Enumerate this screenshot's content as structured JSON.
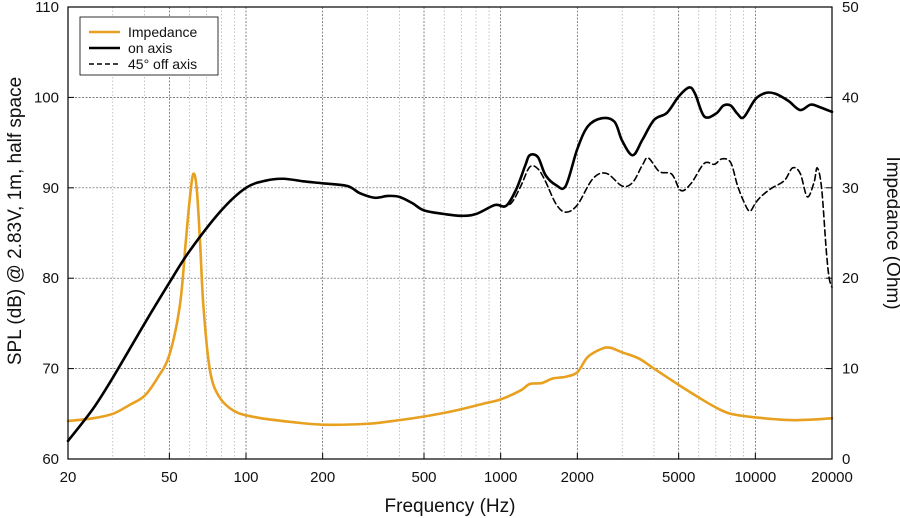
{
  "chart_data": {
    "type": "line",
    "xlabel": "Frequency (Hz)",
    "ylabel_left": "SPL (dB) @ 2.83V, 1m, half space",
    "ylabel_right": "Impedance (Ohm)",
    "x_scale": "log",
    "xlim": [
      20,
      20000
    ],
    "ylim_left": [
      60,
      110
    ],
    "ylim_right": [
      0,
      50
    ],
    "x_ticks": [
      20,
      50,
      100,
      200,
      500,
      1000,
      2000,
      5000,
      10000,
      20000
    ],
    "x_tick_labels": [
      "20",
      "50",
      "100",
      "200",
      "500",
      "1000",
      "2000",
      "5000",
      "10000",
      "20000"
    ],
    "y_ticks_left": [
      60,
      70,
      80,
      90,
      100,
      110
    ],
    "y_tick_labels_left": [
      "60",
      "70",
      "80",
      "90",
      "100",
      "110"
    ],
    "y_ticks_right": [
      0,
      10,
      20,
      30,
      40,
      50
    ],
    "y_tick_labels_right": [
      "0",
      "10",
      "20",
      "30",
      "40",
      "50"
    ],
    "grid": true,
    "legend_position": "top-left",
    "series": [
      {
        "name": "Impedance",
        "axis": "right",
        "color": "#E8A020",
        "style": "solid",
        "points": [
          [
            20,
            4.2
          ],
          [
            25,
            4.5
          ],
          [
            30,
            5.0
          ],
          [
            35,
            6.0
          ],
          [
            40,
            7.0
          ],
          [
            45,
            9.0
          ],
          [
            50,
            11.5
          ],
          [
            55,
            17.0
          ],
          [
            58,
            24.0
          ],
          [
            60,
            28.5
          ],
          [
            62,
            31.5
          ],
          [
            64,
            30.0
          ],
          [
            66,
            24.0
          ],
          [
            68,
            17.0
          ],
          [
            72,
            10.0
          ],
          [
            78,
            7.0
          ],
          [
            90,
            5.3
          ],
          [
            110,
            4.6
          ],
          [
            150,
            4.1
          ],
          [
            200,
            3.8
          ],
          [
            300,
            3.9
          ],
          [
            400,
            4.3
          ],
          [
            500,
            4.7
          ],
          [
            600,
            5.1
          ],
          [
            700,
            5.5
          ],
          [
            850,
            6.1
          ],
          [
            1000,
            6.6
          ],
          [
            1200,
            7.6
          ],
          [
            1300,
            8.3
          ],
          [
            1450,
            8.4
          ],
          [
            1600,
            8.9
          ],
          [
            1800,
            9.1
          ],
          [
            2000,
            9.6
          ],
          [
            2200,
            11.3
          ],
          [
            2500,
            12.2
          ],
          [
            2700,
            12.3
          ],
          [
            3000,
            11.8
          ],
          [
            3500,
            11.1
          ],
          [
            4000,
            10.0
          ],
          [
            5000,
            8.2
          ],
          [
            6000,
            6.8
          ],
          [
            7000,
            5.7
          ],
          [
            8000,
            5.0
          ],
          [
            10000,
            4.6
          ],
          [
            14000,
            4.3
          ],
          [
            20000,
            4.5
          ]
        ]
      },
      {
        "name": "on axis",
        "axis": "left",
        "color": "#000000",
        "style": "solid",
        "points": [
          [
            20,
            62
          ],
          [
            25,
            65.5
          ],
          [
            30,
            69
          ],
          [
            40,
            75
          ],
          [
            50,
            79.5
          ],
          [
            60,
            83
          ],
          [
            80,
            87.5
          ],
          [
            100,
            90
          ],
          [
            120,
            90.8
          ],
          [
            140,
            91
          ],
          [
            170,
            90.7
          ],
          [
            200,
            90.5
          ],
          [
            250,
            90.2
          ],
          [
            280,
            89.4
          ],
          [
            320,
            88.9
          ],
          [
            360,
            89.1
          ],
          [
            400,
            89
          ],
          [
            450,
            88.3
          ],
          [
            500,
            87.5
          ],
          [
            600,
            87.1
          ],
          [
            700,
            86.9
          ],
          [
            800,
            87.1
          ],
          [
            950,
            88.1
          ],
          [
            1050,
            88.0
          ],
          [
            1150,
            89.8
          ],
          [
            1250,
            92.5
          ],
          [
            1300,
            93.6
          ],
          [
            1400,
            93.4
          ],
          [
            1500,
            91.4
          ],
          [
            1650,
            90.3
          ],
          [
            1800,
            90.2
          ],
          [
            2000,
            94.3
          ],
          [
            2200,
            96.8
          ],
          [
            2500,
            97.7
          ],
          [
            2800,
            97.3
          ],
          [
            3000,
            95.2
          ],
          [
            3300,
            93.6
          ],
          [
            3600,
            95.3
          ],
          [
            4000,
            97.5
          ],
          [
            4500,
            98.3
          ],
          [
            5000,
            100.1
          ],
          [
            5500,
            101.1
          ],
          [
            5800,
            100.4
          ],
          [
            6300,
            97.9
          ],
          [
            7000,
            98.2
          ],
          [
            7500,
            99.1
          ],
          [
            8000,
            99.1
          ],
          [
            8500,
            98.2
          ],
          [
            9000,
            97.8
          ],
          [
            10000,
            99.8
          ],
          [
            11000,
            100.5
          ],
          [
            12000,
            100.4
          ],
          [
            13500,
            99.6
          ],
          [
            15000,
            98.6
          ],
          [
            16500,
            99.2
          ],
          [
            18000,
            98.9
          ],
          [
            20000,
            98.4
          ]
        ]
      },
      {
        "name": "45° off axis",
        "axis": "left",
        "color": "#000000",
        "style": "dashed",
        "points": [
          [
            1000,
            87.9
          ],
          [
            1100,
            88.3
          ],
          [
            1200,
            90.2
          ],
          [
            1300,
            92.3
          ],
          [
            1400,
            92.1
          ],
          [
            1500,
            90.7
          ],
          [
            1650,
            88.2
          ],
          [
            1800,
            87.3
          ],
          [
            2000,
            88.1
          ],
          [
            2300,
            91
          ],
          [
            2600,
            91.6
          ],
          [
            3000,
            90.2
          ],
          [
            3300,
            90.6
          ],
          [
            3600,
            92.5
          ],
          [
            3800,
            93.3
          ],
          [
            4200,
            91.8
          ],
          [
            4700,
            91.5
          ],
          [
            5100,
            89.7
          ],
          [
            5600,
            90.5
          ],
          [
            6300,
            92.7
          ],
          [
            6900,
            92.6
          ],
          [
            7400,
            93.2
          ],
          [
            8000,
            92.8
          ],
          [
            8500,
            90.3
          ],
          [
            9000,
            88.5
          ],
          [
            9500,
            87.4
          ],
          [
            10000,
            88.3
          ],
          [
            10500,
            89.0
          ],
          [
            11500,
            89.9
          ],
          [
            13000,
            90.8
          ],
          [
            14000,
            92.2
          ],
          [
            15000,
            91.6
          ],
          [
            16000,
            89
          ],
          [
            17000,
            90.6
          ],
          [
            17500,
            92.2
          ],
          [
            18200,
            90.0
          ],
          [
            19000,
            83
          ],
          [
            19500,
            80
          ],
          [
            20000,
            79
          ]
        ]
      }
    ]
  }
}
